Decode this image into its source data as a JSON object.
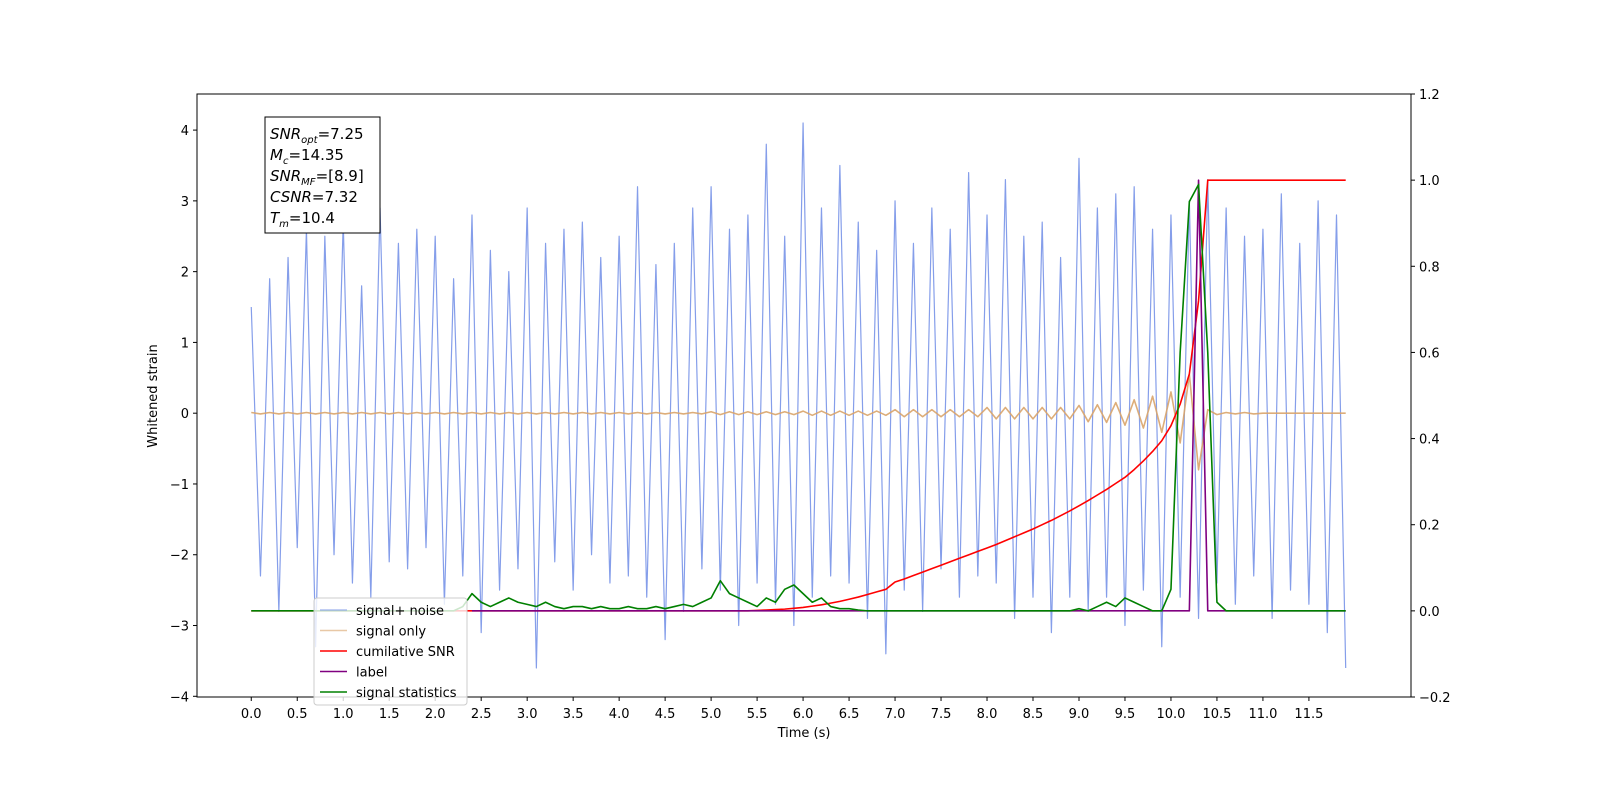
{
  "chart_data": {
    "type": "line",
    "x_label": "Time (s)",
    "y_label": "Whitened strain",
    "annotation": [
      {
        "symbol": "SNR",
        "subscript": "opt",
        "text": "=7.25"
      },
      {
        "symbol": "M",
        "subscript": "c",
        "text": "=14.35"
      },
      {
        "symbol": "SNR",
        "subscript": "MF",
        "text": "=[8.9]"
      },
      {
        "symbol": "CSNR",
        "text": "=7.32"
      },
      {
        "symbol": "T",
        "subscript": "m",
        "text": "=10.4"
      }
    ],
    "legend": "lower left",
    "xlim": [
      -0.59,
      12.61
    ],
    "ylim": [
      -4.01,
      4.51
    ],
    "y2lim": [
      -0.2,
      1.2
    ],
    "xticks": [
      {
        "value": 0,
        "label": "0.0"
      },
      0.5,
      {
        "value": 1,
        "label": "1.0"
      },
      1.5,
      {
        "value": 2,
        "label": "2.0"
      },
      2.5,
      {
        "value": 3,
        "label": "3.0"
      },
      3.5,
      {
        "value": 4,
        "label": "4.0"
      },
      4.5,
      {
        "value": 5,
        "label": "5.0"
      },
      5.5,
      {
        "value": 6,
        "label": "6.0"
      },
      6.5,
      {
        "value": 7,
        "label": "7.0"
      },
      7.5,
      {
        "value": 8,
        "label": "8.0"
      },
      8.5,
      {
        "value": 9,
        "label": "9.0"
      },
      9.5,
      {
        "value": 10,
        "label": "10.0"
      },
      10.5,
      {
        "value": 11,
        "label": "11.0"
      },
      11.5
    ],
    "yticks": [
      {
        "value": -4,
        "label": "−4"
      },
      {
        "value": -3,
        "label": "−3"
      },
      {
        "value": -2,
        "label": "−2"
      },
      {
        "value": -1,
        "label": "−1"
      },
      0,
      1,
      2,
      3,
      4
    ],
    "y2ticks": [
      {
        "value": -0.2,
        "label": "−0.2"
      },
      {
        "value": 0,
        "label": "0.0"
      },
      0.2,
      0.4,
      0.6,
      0.8,
      {
        "value": 1,
        "label": "1.0"
      },
      1.2
    ],
    "x": [
      0,
      0.1,
      0.2,
      0.3,
      0.4,
      0.5,
      0.6,
      0.7,
      0.8,
      0.9,
      1,
      1.1,
      1.2,
      1.3,
      1.4,
      1.5,
      1.6,
      1.7,
      1.8,
      1.9,
      2,
      2.1,
      2.2,
      2.3,
      2.4,
      2.5,
      2.6,
      2.7,
      2.8,
      2.9,
      3,
      3.1,
      3.2,
      3.3,
      3.4,
      3.5,
      3.6,
      3.7,
      3.8,
      3.9,
      4,
      4.1,
      4.2,
      4.3,
      4.4,
      4.5,
      4.6,
      4.7,
      4.8,
      4.9,
      5,
      5.1,
      5.2,
      5.3,
      5.4,
      5.5,
      5.6,
      5.7,
      5.8,
      5.9,
      6,
      6.1,
      6.2,
      6.3,
      6.4,
      6.5,
      6.6,
      6.7,
      6.8,
      6.9,
      7,
      7.1,
      7.2,
      7.3,
      7.4,
      7.5,
      7.6,
      7.7,
      7.8,
      7.9,
      8,
      8.1,
      8.2,
      8.3,
      8.4,
      8.5,
      8.6,
      8.7,
      8.8,
      8.9,
      9,
      9.1,
      9.2,
      9.3,
      9.4,
      9.5,
      9.6,
      9.7,
      9.8,
      9.9,
      10,
      10.1,
      10.2,
      10.3,
      10.4,
      10.5,
      10.6,
      10.7,
      10.8,
      10.9,
      11,
      11.1,
      11.2,
      11.3,
      11.4,
      11.5,
      11.6,
      11.7,
      11.8,
      11.9
    ],
    "series": [
      {
        "name": "signal+ noise",
        "color": "#7893e8",
        "values": [
          1.5,
          -2.3,
          1.9,
          -2.8,
          2.2,
          -1.9,
          2.6,
          -3.3,
          2.5,
          -2.0,
          2.7,
          -2.4,
          1.8,
          -2.6,
          2.9,
          -2.1,
          2.4,
          -2.2,
          2.6,
          -1.9,
          2.5,
          -2.7,
          1.9,
          -2.3,
          2.8,
          -3.1,
          2.3,
          -2.5,
          2.0,
          -2.2,
          2.9,
          -3.6,
          2.4,
          -2.1,
          2.6,
          -2.5,
          2.7,
          -2.0,
          2.2,
          -2.4,
          2.5,
          -2.3,
          3.2,
          -2.6,
          2.1,
          -3.2,
          2.4,
          -2.8,
          2.9,
          -2.2,
          3.2,
          -2.5,
          2.6,
          -3.0,
          2.8,
          -2.4,
          3.8,
          -2.7,
          2.5,
          -3.0,
          4.1,
          -2.6,
          2.9,
          -2.3,
          3.5,
          -2.4,
          2.7,
          -2.9,
          2.3,
          -3.4,
          3.0,
          -2.5,
          2.4,
          -2.8,
          2.9,
          -2.2,
          2.6,
          -2.6,
          3.4,
          -2.3,
          2.8,
          -2.4,
          3.3,
          -2.9,
          2.5,
          -2.6,
          2.7,
          -3.1,
          2.2,
          -2.6,
          3.6,
          -2.8,
          2.9,
          -2.6,
          3.1,
          -3.0,
          3.2,
          -2.5,
          2.6,
          -3.3,
          2.8,
          -2.6,
          3.0,
          -2.9,
          3.3,
          -2.4,
          2.9,
          -2.7,
          2.5,
          -2.3,
          2.6,
          -2.9,
          3.1,
          -2.5,
          2.4,
          -2.7,
          3.0,
          -3.1,
          2.8,
          -3.6
        ]
      },
      {
        "name": "signal only",
        "color": "#d9a46a",
        "values": [
          0.01,
          -0.01,
          0.01,
          -0.01,
          0.01,
          -0.01,
          0.01,
          -0.01,
          0.01,
          -0.01,
          0.01,
          -0.01,
          0.01,
          -0.01,
          0.01,
          -0.01,
          0.01,
          -0.01,
          0.01,
          -0.01,
          0.01,
          -0.01,
          0.01,
          -0.01,
          0.01,
          -0.01,
          0.01,
          -0.01,
          0.01,
          -0.01,
          0.01,
          -0.01,
          0.01,
          -0.01,
          0.01,
          -0.01,
          0.01,
          -0.01,
          0.01,
          -0.01,
          0.01,
          -0.01,
          0.01,
          -0.01,
          0.01,
          -0.01,
          0.01,
          -0.01,
          0.01,
          -0.01,
          0.02,
          -0.02,
          0.02,
          -0.02,
          0.02,
          -0.02,
          0.02,
          -0.02,
          0.02,
          -0.02,
          0.03,
          -0.03,
          0.03,
          -0.03,
          0.03,
          -0.03,
          0.03,
          -0.03,
          0.03,
          -0.03,
          0.05,
          -0.05,
          0.05,
          -0.05,
          0.05,
          -0.05,
          0.05,
          -0.05,
          0.05,
          -0.05,
          0.08,
          -0.08,
          0.08,
          -0.08,
          0.08,
          -0.08,
          0.08,
          -0.08,
          0.08,
          -0.08,
          0.11,
          -0.12,
          0.12,
          -0.13,
          0.15,
          -0.17,
          0.19,
          -0.21,
          0.24,
          -0.27,
          0.3,
          -0.42,
          0.55,
          -0.8,
          0.05,
          -0.02,
          0.01,
          -0.01,
          0.01,
          -0.01,
          0,
          0,
          0,
          0,
          0,
          0,
          0,
          0,
          0,
          0
        ]
      },
      {
        "name": "cumilative SNR",
        "color": "#ff0000",
        "axis": "y2",
        "values": [
          0,
          0,
          0,
          0,
          0,
          0,
          0,
          0,
          0,
          0,
          0,
          0,
          0,
          0,
          0,
          0,
          0,
          0,
          0,
          0,
          0,
          0,
          0,
          0,
          0,
          0,
          0,
          0,
          0,
          0,
          0,
          0,
          0,
          0,
          0,
          0,
          0,
          0,
          0,
          0,
          0,
          0,
          0,
          0,
          0,
          0,
          0,
          0,
          0,
          0,
          0,
          0,
          0,
          0,
          0,
          0.001,
          0.002,
          0.003,
          0.004,
          0.006,
          0.008,
          0.011,
          0.014,
          0.018,
          0.022,
          0.027,
          0.032,
          0.038,
          0.044,
          0.05,
          0.067,
          0.074,
          0.082,
          0.09,
          0.098,
          0.106,
          0.114,
          0.122,
          0.13,
          0.138,
          0.146,
          0.154,
          0.163,
          0.172,
          0.181,
          0.19,
          0.2,
          0.21,
          0.221,
          0.232,
          0.244,
          0.256,
          0.269,
          0.282,
          0.296,
          0.31,
          0.328,
          0.348,
          0.37,
          0.395,
          0.43,
          0.48,
          0.55,
          0.72,
          1.0,
          1.0,
          1.0,
          1.0,
          1.0,
          1.0,
          1.0,
          1.0,
          1.0,
          1.0,
          1.0,
          1.0,
          1.0,
          1.0,
          1.0,
          1.0
        ]
      },
      {
        "name": "label",
        "color": "#800080",
        "axis": "y2",
        "values": [
          null,
          null,
          null,
          null,
          null,
          null,
          null,
          null,
          null,
          null,
          null,
          null,
          null,
          null,
          null,
          null,
          null,
          null,
          null,
          null,
          null,
          null,
          null,
          null,
          0,
          0,
          0,
          0,
          0,
          0,
          0,
          0,
          0,
          0,
          0,
          0,
          0,
          0,
          0,
          0,
          0,
          0,
          0,
          0,
          0,
          0,
          0,
          0,
          0,
          0,
          0,
          0,
          0,
          0,
          0,
          0,
          0,
          0,
          0,
          0,
          0,
          0,
          0,
          0,
          0,
          0,
          0,
          0,
          0,
          0,
          0,
          0,
          0,
          0,
          0,
          0,
          0,
          0,
          0,
          0,
          0,
          0,
          0,
          0,
          0,
          0,
          0,
          0,
          0,
          0,
          0,
          0,
          0,
          0,
          0,
          0,
          0,
          0,
          0,
          0,
          0,
          0,
          0,
          1,
          0,
          0,
          0,
          0,
          0,
          0,
          0,
          0,
          0,
          0,
          0,
          0,
          0,
          0,
          0,
          0
        ]
      },
      {
        "name": "signal statistics",
        "color": "#008000",
        "axis": "y2",
        "values": [
          0,
          0,
          0,
          0,
          0,
          0,
          0,
          0,
          0,
          0,
          0,
          0,
          0,
          0,
          0,
          0,
          0,
          0,
          0,
          0,
          0,
          0,
          0,
          0.01,
          0.04,
          0.02,
          0.01,
          0.02,
          0.03,
          0.02,
          0.015,
          0.01,
          0.02,
          0.01,
          0.005,
          0.01,
          0.01,
          0.005,
          0.01,
          0.005,
          0.005,
          0.01,
          0.005,
          0.005,
          0.01,
          0.005,
          0.01,
          0.015,
          0.01,
          0.02,
          0.03,
          0.07,
          0.04,
          0.03,
          0.02,
          0.01,
          0.03,
          0.02,
          0.05,
          0.06,
          0.04,
          0.02,
          0.03,
          0.01,
          0.005,
          0.005,
          0.002,
          0,
          0,
          0,
          0,
          0,
          0,
          0,
          0,
          0,
          0,
          0,
          0,
          0,
          0,
          0,
          0,
          0,
          0,
          0,
          0,
          0,
          0,
          0,
          0.005,
          0,
          0.01,
          0.02,
          0.01,
          0.03,
          0.02,
          0.01,
          0,
          0,
          0.05,
          0.6,
          0.95,
          0.99,
          0.6,
          0.02,
          0,
          0,
          0,
          0,
          0,
          0,
          0,
          0,
          0,
          0,
          0,
          0,
          0,
          0
        ]
      }
    ]
  }
}
